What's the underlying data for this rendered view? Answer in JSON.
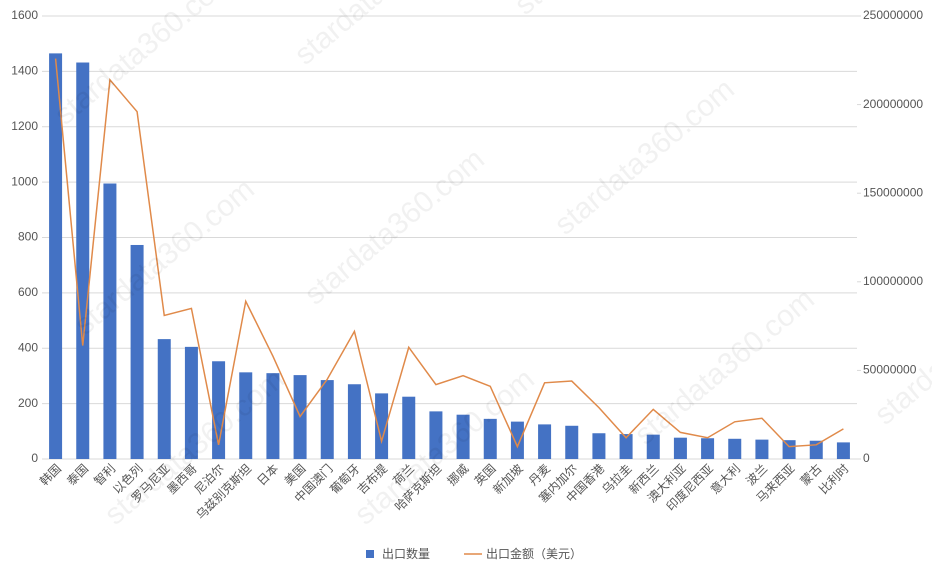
{
  "chart_data": {
    "type": "bar_line",
    "watermark": "stardata360.com",
    "categories": [
      "韩国",
      "泰国",
      "智利",
      "以色列",
      "罗马尼亚",
      "墨西哥",
      "尼泊尔",
      "乌兹别克斯坦",
      "日本",
      "美国",
      "中国澳门",
      "葡萄牙",
      "吉布提",
      "荷兰",
      "哈萨克斯坦",
      "挪威",
      "英国",
      "新加坡",
      "丹麦",
      "塞内加尔",
      "中国香港",
      "乌拉圭",
      "新西兰",
      "澳大利亚",
      "印度尼西亚",
      "意大利",
      "波兰",
      "马来西亚",
      "蒙古",
      "比利时"
    ],
    "series": [
      {
        "name": "出口数量",
        "color": "#4472c4",
        "type": "bar",
        "values": [
          1465,
          1432,
          995,
          773,
          433,
          405,
          353,
          313,
          310,
          303,
          285,
          270,
          237,
          225,
          172,
          160,
          145,
          135,
          125,
          120,
          93,
          90,
          88,
          77,
          75,
          73,
          70,
          68,
          66,
          60
        ]
      },
      {
        "name": "出口金额（美元）",
        "color": "#e08a4a",
        "type": "line",
        "axis": "y2",
        "values": [
          226000000,
          64000000,
          214000000,
          196000000,
          81000000,
          85000000,
          8000000,
          89000000,
          58000000,
          24000000,
          45000000,
          72000000,
          10000000,
          63000000,
          42000000,
          47000000,
          41000000,
          7000000,
          43000000,
          44000000,
          29000000,
          12000000,
          28000000,
          15000000,
          12000000,
          21000000,
          23000000,
          7000000,
          8000000,
          17000000
        ]
      }
    ],
    "ylim": [
      0,
      1600
    ],
    "yticks": [
      0,
      200,
      400,
      600,
      800,
      1000,
      1200,
      1400,
      1600
    ],
    "y2lim": [
      0,
      250000000
    ],
    "y2ticks": [
      0,
      50000000,
      100000000,
      150000000,
      200000000,
      250000000
    ],
    "grid": true,
    "legend": "bottom"
  }
}
